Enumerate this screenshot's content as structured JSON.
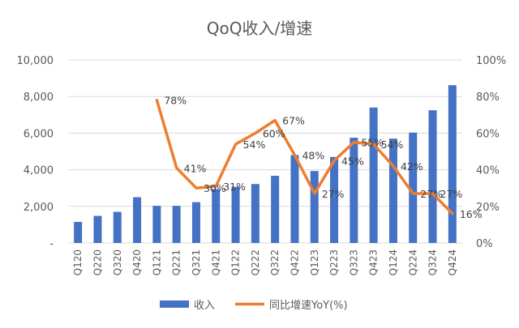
{
  "chart_data": {
    "type": "bar",
    "title": "QoQ收入/增速",
    "categories": [
      "Q120",
      "Q220",
      "Q320",
      "Q420",
      "Q121",
      "Q221",
      "Q321",
      "Q421",
      "Q122",
      "Q222",
      "Q322",
      "Q422",
      "Q123",
      "Q223",
      "Q323",
      "Q423",
      "Q124",
      "Q224",
      "Q324",
      "Q424"
    ],
    "y_ticks": [
      "-",
      "2,000",
      "4,000",
      "6,000",
      "8,000",
      "10,000"
    ],
    "y2_ticks": [
      "0%",
      "20%",
      "40%",
      "60%",
      "80%",
      "100%"
    ],
    "ylim": [
      0,
      10000
    ],
    "y2lim": [
      0,
      100
    ],
    "grid": true,
    "legend_position": "bottom",
    "series": [
      {
        "name": "收入",
        "type": "bar",
        "axis": "left",
        "color": "#4472C4",
        "values": [
          1150,
          1480,
          1700,
          2500,
          2030,
          2030,
          2230,
          2950,
          3070,
          3220,
          3670,
          4800,
          3930,
          4700,
          5750,
          7400,
          5700,
          6030,
          7250,
          8620
        ]
      },
      {
        "name": "同比增速YoY(%)",
        "type": "line",
        "axis": "right",
        "color": "#ED7D31",
        "values": [
          null,
          null,
          null,
          null,
          78,
          41,
          30,
          31,
          54,
          60,
          67,
          48,
          27,
          45,
          55,
          54,
          42,
          27,
          27,
          16
        ],
        "data_labels": [
          "",
          "",
          "",
          "",
          "78%",
          "41%",
          "30%",
          "31%",
          "54%",
          "60%",
          "67%",
          "48%",
          "27%",
          "45%",
          "55%",
          "54%",
          "42%",
          "27%",
          "27%",
          "16%"
        ]
      }
    ]
  }
}
